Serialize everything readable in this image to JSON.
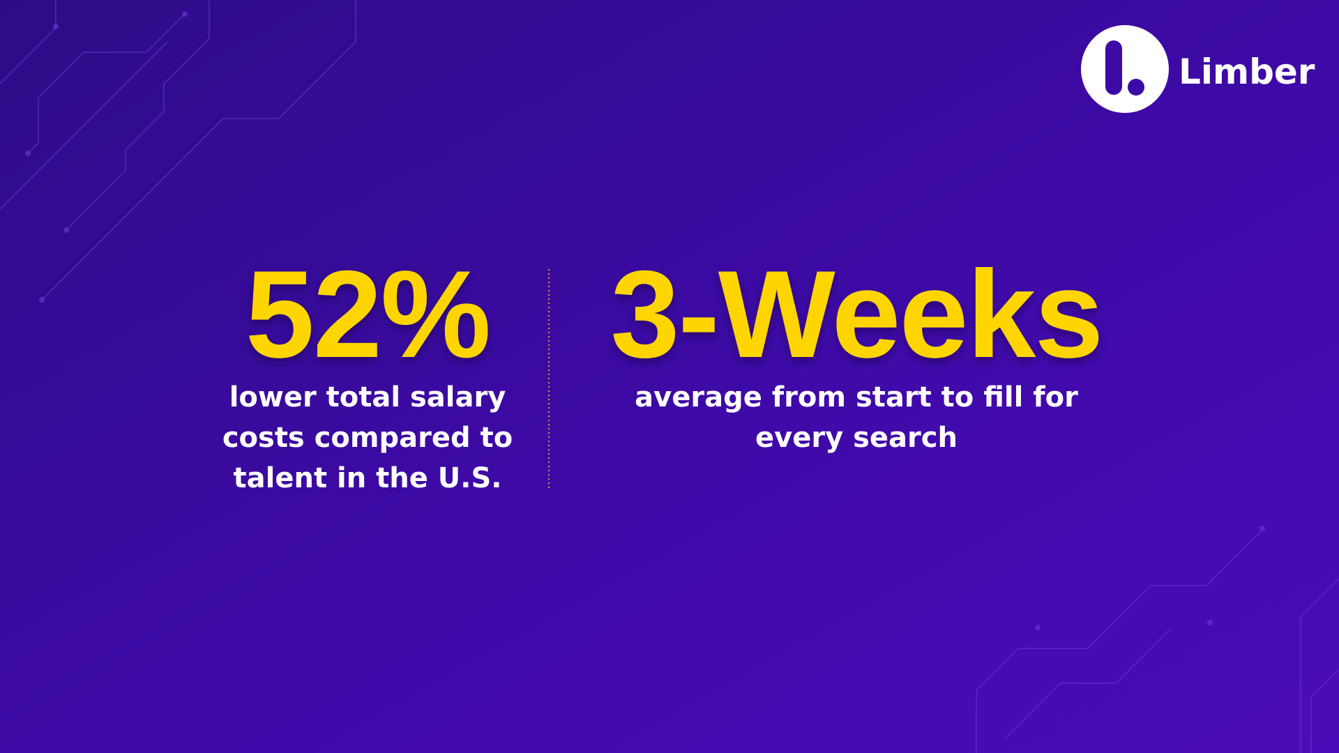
{
  "logo": {
    "name": "Limber"
  },
  "stats": [
    {
      "value": "52%",
      "description": [
        "lower total salary",
        "costs compared to",
        "talent in the U.S."
      ]
    },
    {
      "value": "3-Weeks",
      "description": [
        "average from start to fill for",
        "every search"
      ]
    }
  ]
}
